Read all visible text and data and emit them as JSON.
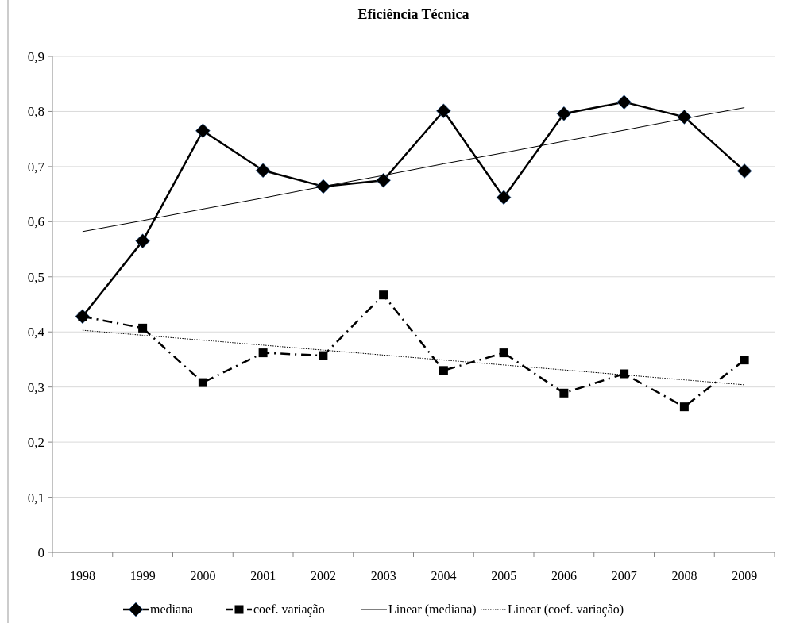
{
  "chart_data": {
    "type": "line",
    "title": "Eficiência Técnica",
    "categories": [
      "1998",
      "1999",
      "2000",
      "2001",
      "2002",
      "2003",
      "2004",
      "2005",
      "2006",
      "2007",
      "2008",
      "2009"
    ],
    "series": [
      {
        "name": "mediana",
        "color": "#000000",
        "marker": "diamond",
        "line_style": "solid",
        "values": [
          0.428,
          0.565,
          0.765,
          0.693,
          0.664,
          0.675,
          0.801,
          0.644,
          0.796,
          0.817,
          0.79,
          0.692
        ]
      },
      {
        "name": "coef. variação",
        "color": "#000000",
        "marker": "square",
        "line_style": "dashed",
        "values": [
          0.428,
          0.407,
          0.308,
          0.362,
          0.357,
          0.467,
          0.33,
          0.362,
          0.289,
          0.324,
          0.264,
          0.349
        ]
      },
      {
        "name": "Linear (mediana)",
        "color": "#000000",
        "marker": "none",
        "line_style": "solid",
        "values": [
          0.582,
          0.602,
          0.623,
          0.643,
          0.664,
          0.684,
          0.705,
          0.725,
          0.746,
          0.766,
          0.787,
          0.807
        ]
      },
      {
        "name": "Linear (coef. variação)",
        "color": "#000000",
        "marker": "none",
        "line_style": "dotted",
        "values": [
          0.403,
          0.394,
          0.385,
          0.376,
          0.367,
          0.358,
          0.349,
          0.34,
          0.331,
          0.322,
          0.313,
          0.304
        ]
      }
    ],
    "ylim": [
      0,
      0.9
    ],
    "yticks": [
      {
        "value": 0,
        "label": "0"
      },
      {
        "value": 0.1,
        "label": "0,1"
      },
      {
        "value": 0.2,
        "label": "0,2"
      },
      {
        "value": 0.3,
        "label": "0,3"
      },
      {
        "value": 0.4,
        "label": "0,4"
      },
      {
        "value": 0.5,
        "label": "0,5"
      },
      {
        "value": 0.6,
        "label": "0,6"
      },
      {
        "value": 0.7,
        "label": "0,7"
      },
      {
        "value": 0.8,
        "label": "0,8"
      },
      {
        "value": 0.9,
        "label": "0,9"
      }
    ],
    "grid": "y",
    "legend": "bottom"
  }
}
